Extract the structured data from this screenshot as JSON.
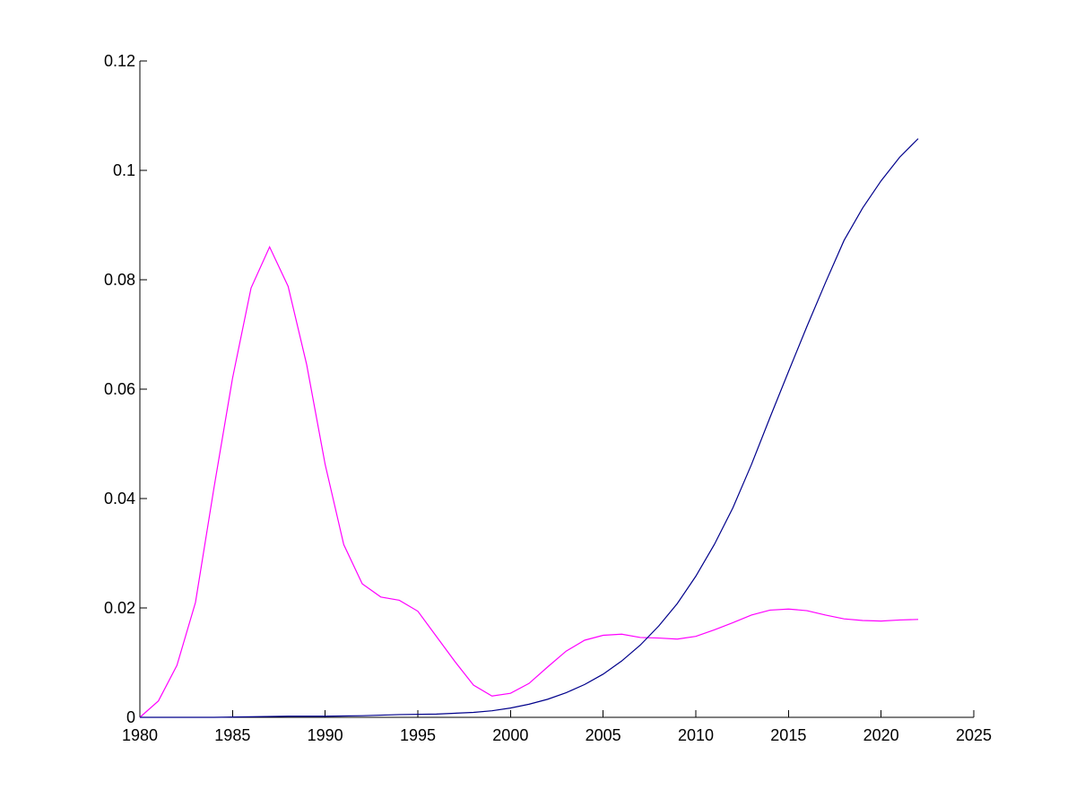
{
  "chart_data": {
    "type": "line",
    "title": "",
    "xlabel": "",
    "ylabel": "",
    "xlim": [
      1980,
      2025
    ],
    "ylim": [
      0,
      0.12
    ],
    "grid": false,
    "x_ticks": [
      1980,
      1985,
      1990,
      1995,
      2000,
      2005,
      2010,
      2015,
      2020,
      2025
    ],
    "x_tick_labels": [
      "1980",
      "1985",
      "1990",
      "1995",
      "2000",
      "2005",
      "2010",
      "2015",
      "2020",
      "2025"
    ],
    "y_ticks": [
      0,
      0.02,
      0.04,
      0.06,
      0.08,
      0.1,
      0.12
    ],
    "y_tick_labels": [
      "0",
      "0.02",
      "0.04",
      "0.06",
      "0.08",
      "0.1",
      "0.12"
    ],
    "series": [
      {
        "color": "#ff00ff",
        "x": [
          1980,
          1981,
          1982,
          1983,
          1984,
          1985,
          1986,
          1987,
          1988,
          1989,
          1990,
          1991,
          1992,
          1993,
          1994,
          1995,
          1996,
          1997,
          1998,
          1999,
          2000,
          2001,
          2002,
          2003,
          2004,
          2005,
          2006,
          2007,
          2008,
          2009,
          2010,
          2011,
          2012,
          2013,
          2014,
          2015,
          2016,
          2017,
          2018,
          2019,
          2020,
          2021,
          2022
        ],
        "y": [
          0.0,
          0.003,
          0.0095,
          0.021,
          0.042,
          0.062,
          0.0785,
          0.086,
          0.0788,
          0.0645,
          0.0462,
          0.0316,
          0.0244,
          0.022,
          0.0214,
          0.0194,
          0.0148,
          0.0102,
          0.0059,
          0.0039,
          0.0044,
          0.0062,
          0.0092,
          0.0121,
          0.0141,
          0.015,
          0.0152,
          0.0146,
          0.0145,
          0.0143,
          0.0148,
          0.016,
          0.0173,
          0.0187,
          0.0196,
          0.0198,
          0.0195,
          0.0187,
          0.018,
          0.0177,
          0.0176,
          0.0178,
          0.0179
        ]
      },
      {
        "color": "#00008b",
        "x": [
          1980,
          1982,
          1984,
          1986,
          1988,
          1990,
          1992,
          1994,
          1996,
          1998,
          1999,
          2000,
          2001,
          2002,
          2003,
          2004,
          2005,
          2006,
          2007,
          2008,
          2009,
          2010,
          2011,
          2012,
          2013,
          2014,
          2015,
          2016,
          2017,
          2018,
          2019,
          2020,
          2021,
          2022
        ],
        "y": [
          0.0,
          0.0,
          0.0,
          0.0001,
          0.0002,
          0.0002,
          0.0003,
          0.0005,
          0.0006,
          0.0009,
          0.0012,
          0.0017,
          0.0024,
          0.0033,
          0.0045,
          0.006,
          0.0079,
          0.0103,
          0.0132,
          0.0167,
          0.0208,
          0.0258,
          0.0316,
          0.0383,
          0.0462,
          0.0548,
          0.0632,
          0.0715,
          0.0795,
          0.0872,
          0.0931,
          0.0981,
          0.1024,
          0.1058
        ]
      }
    ]
  }
}
